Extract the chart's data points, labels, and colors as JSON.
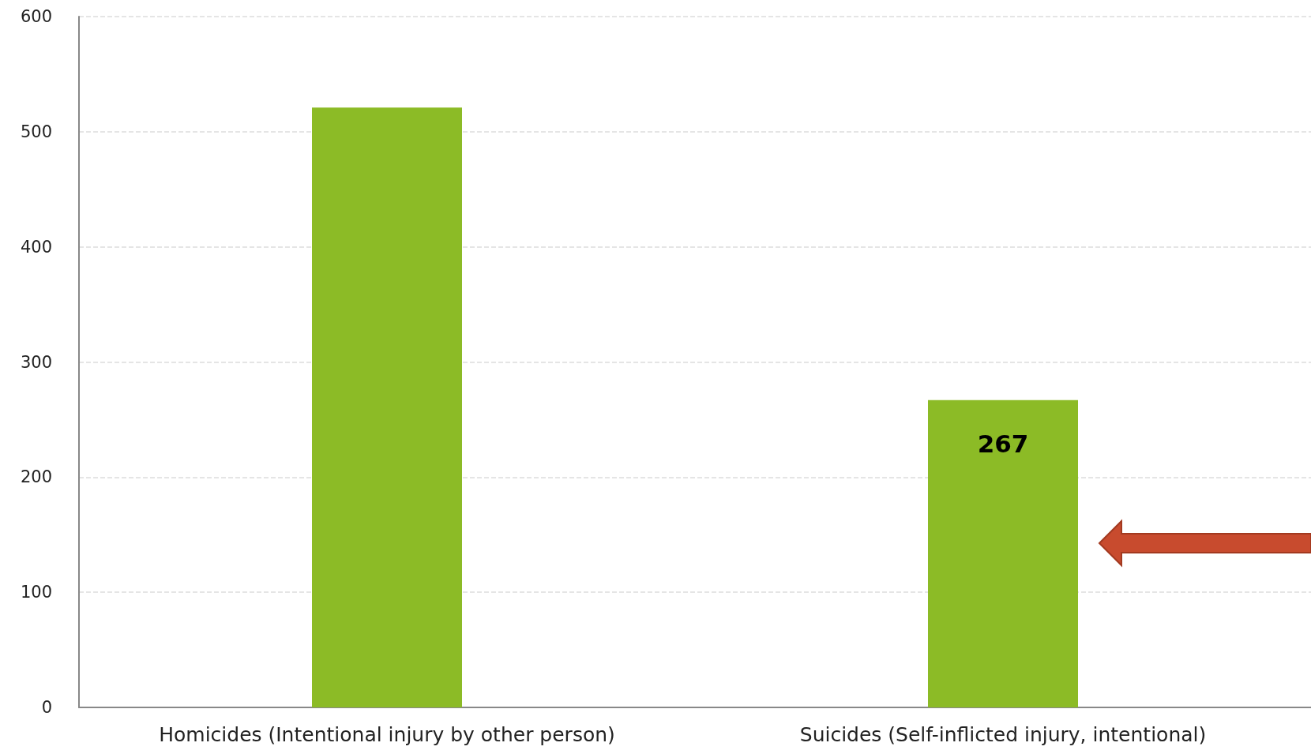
{
  "chart_data": {
    "type": "bar",
    "categories": [
      "Homicides (Intentional injury by other person)",
      "Suicides (Self-inflicted injury, intentional)"
    ],
    "values": [
      521,
      267
    ],
    "value_labels": [
      null,
      "267"
    ],
    "color": "#8cbb26",
    "ylim": [
      0,
      600
    ],
    "yticks": [
      0,
      100,
      200,
      300,
      400,
      500,
      600
    ],
    "grid": "y"
  }
}
